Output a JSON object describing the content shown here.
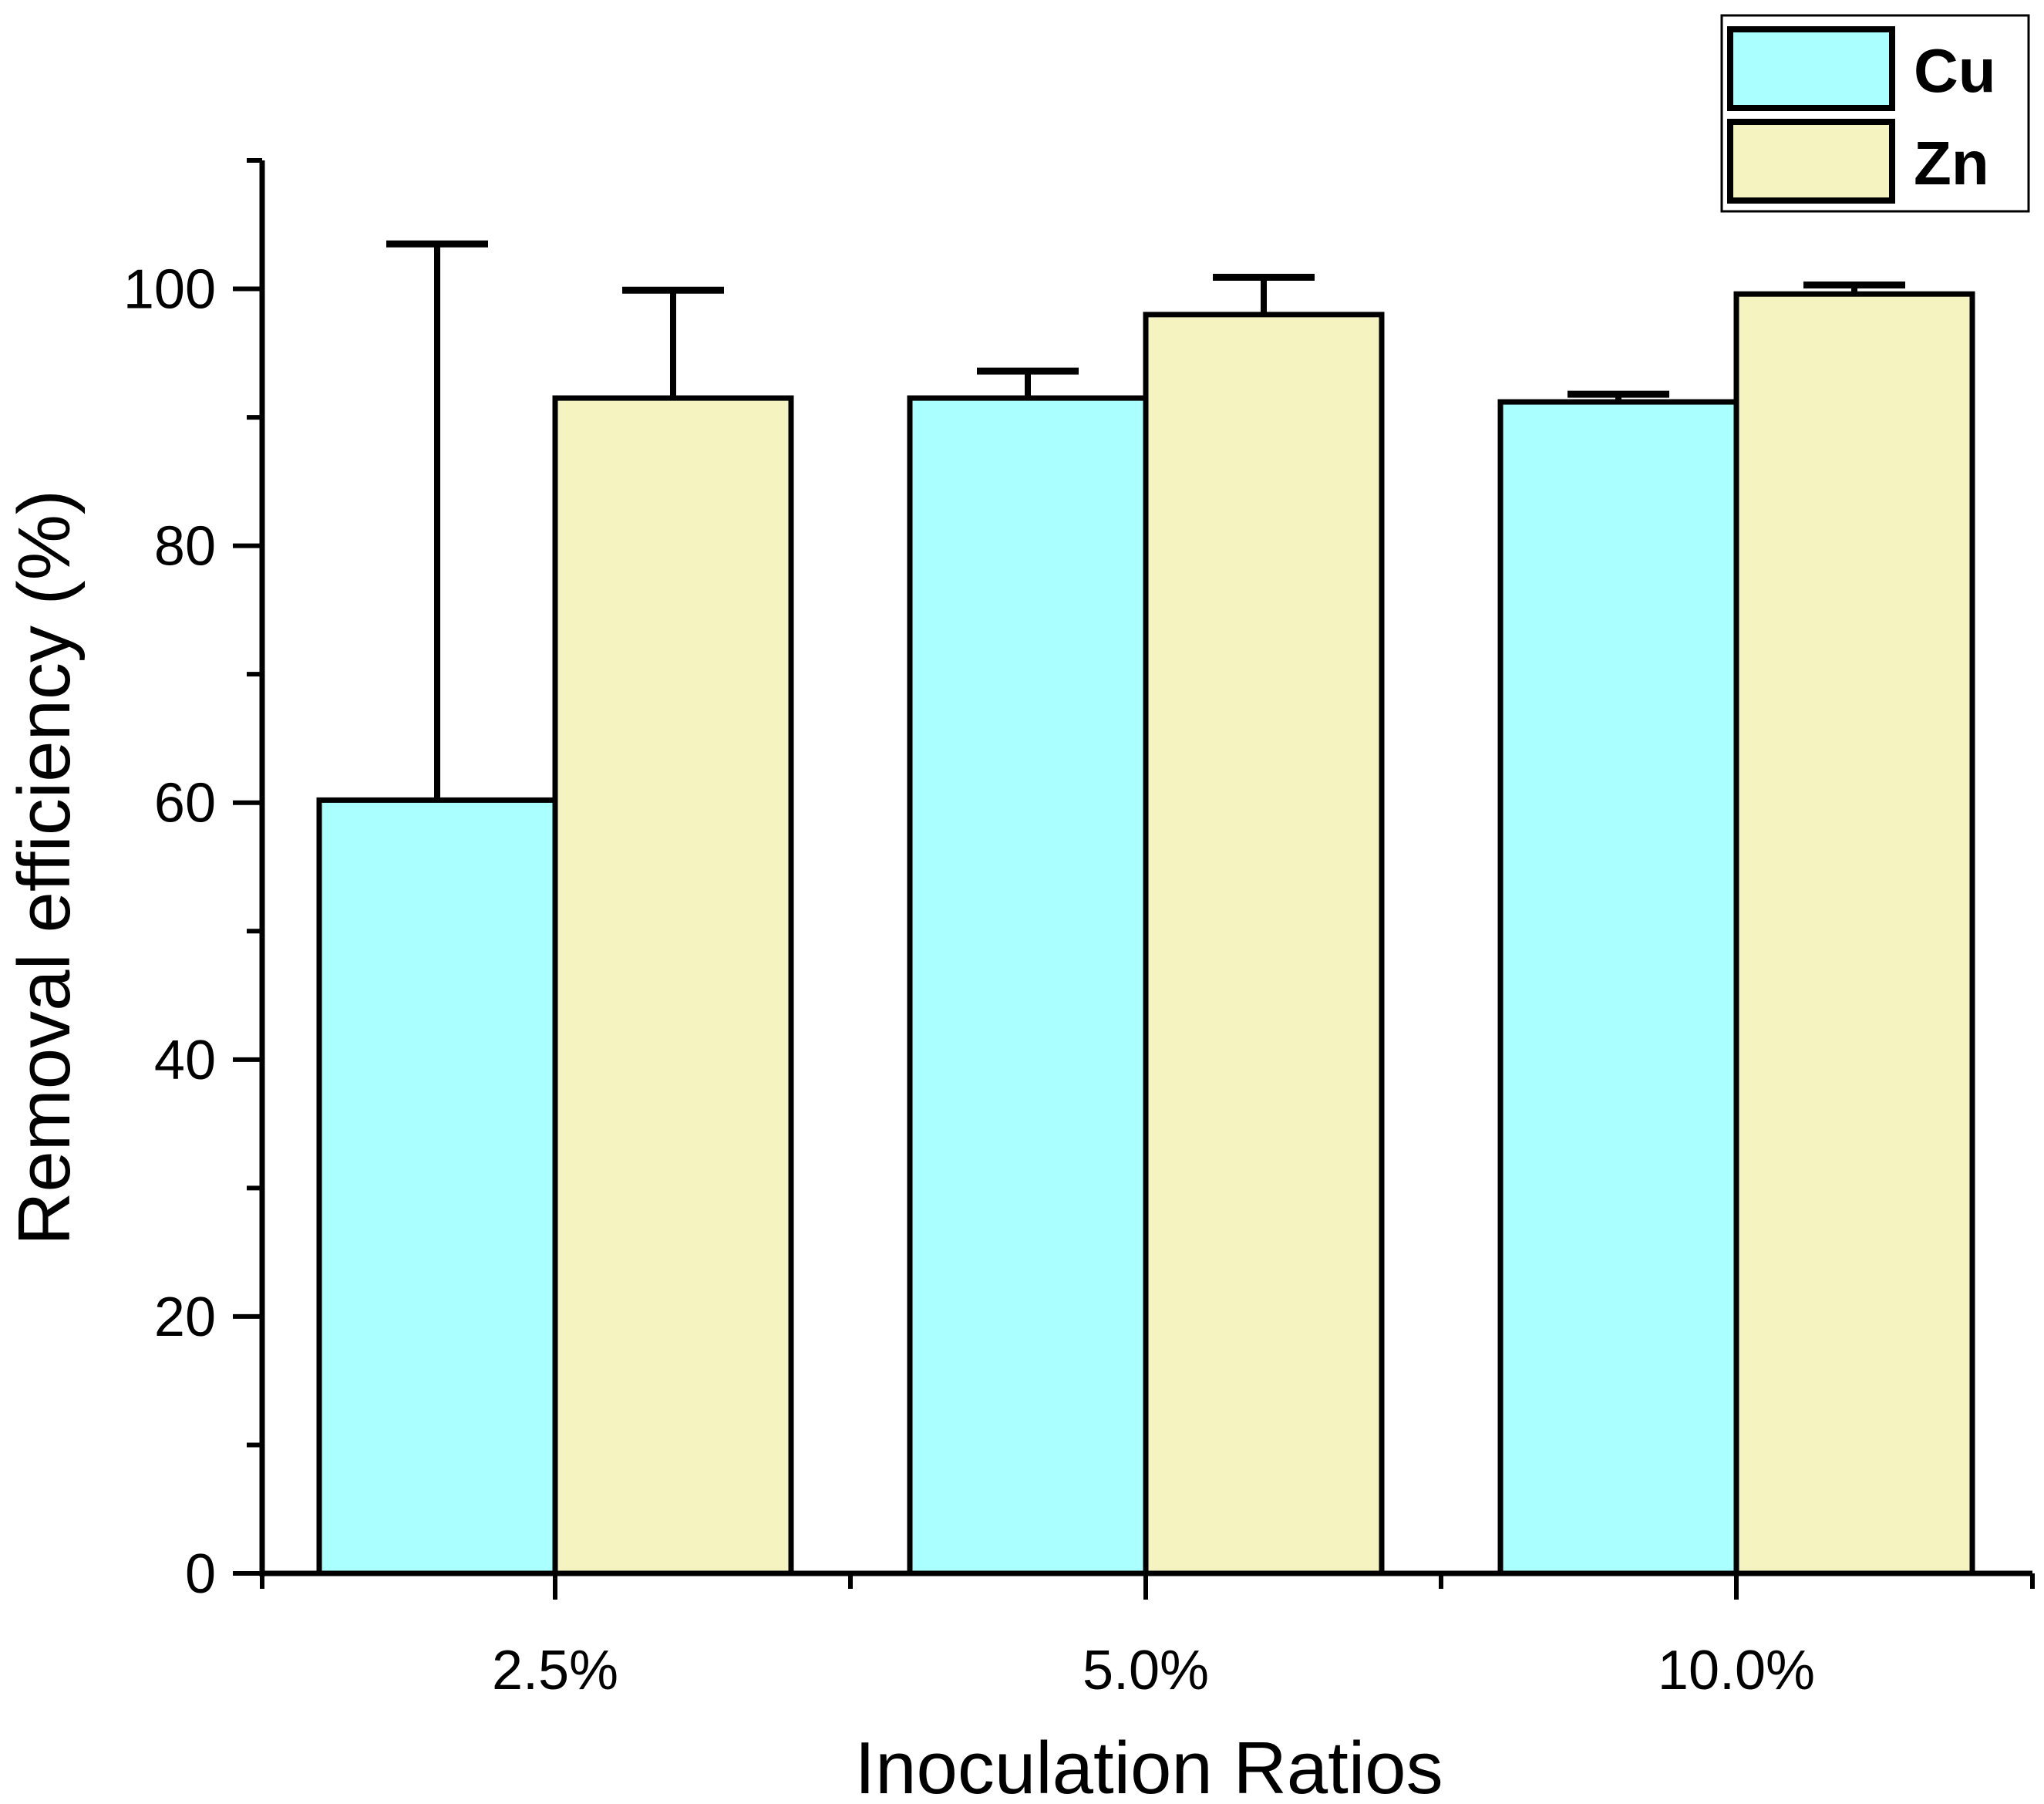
{
  "chart_data": {
    "type": "bar",
    "title": "",
    "xlabel": "Inoculation Ratios",
    "ylabel": "Removal efficiency (%)",
    "categories": [
      "2.5%",
      "5.0%",
      "10.0%"
    ],
    "ylim": [
      0,
      110
    ],
    "y_major_ticks": [
      0,
      20,
      40,
      60,
      80,
      100
    ],
    "y_minor_ticks": [
      10,
      30,
      50,
      70,
      90,
      110
    ],
    "grid": false,
    "legend_position": "top-right",
    "series": [
      {
        "name": "Cu",
        "color": "#aaffff",
        "values": [
          60.2,
          91.5,
          91.2
        ],
        "errors": [
          43.3,
          2.1,
          0.6
        ]
      },
      {
        "name": "Zn",
        "color": "#f5f3c0",
        "values": [
          91.5,
          98.0,
          99.6
        ],
        "errors": [
          8.4,
          2.9,
          0.7
        ]
      }
    ]
  }
}
